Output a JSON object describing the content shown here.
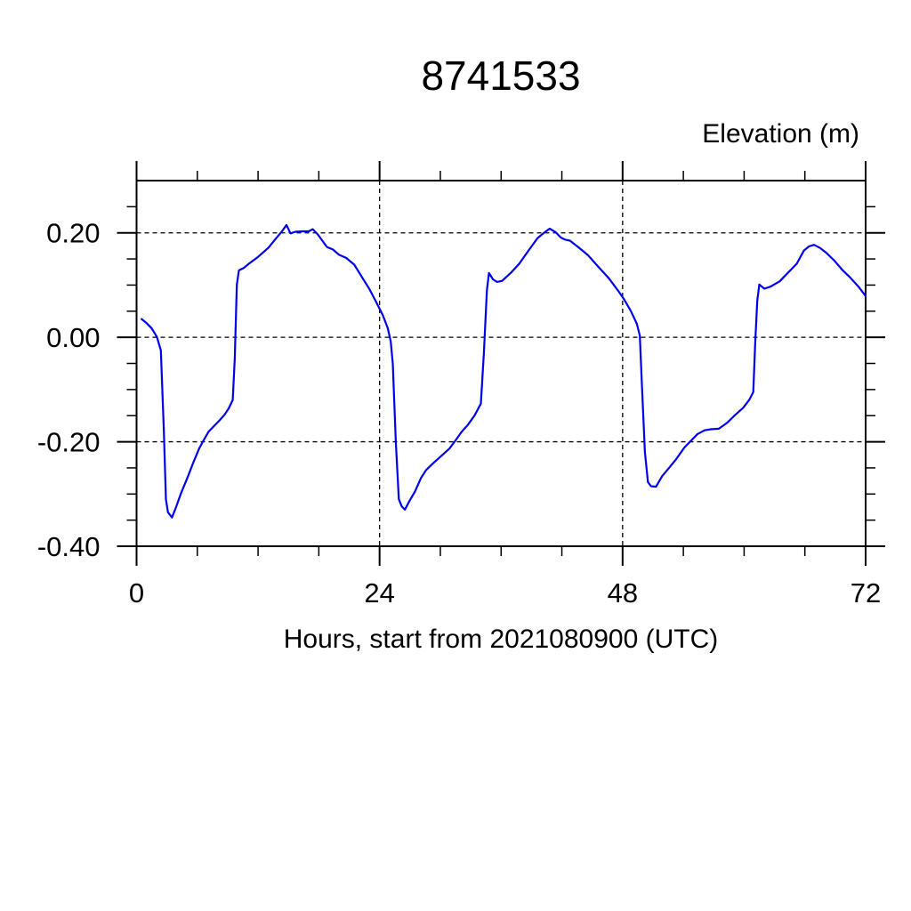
{
  "title": "8741533",
  "y_axis_title": "Elevation (m)",
  "x_axis_label": "Hours, start from 2021080900 (UTC)",
  "colors": {
    "line": "#0000ee",
    "axis": "#000000",
    "grid": "#000000",
    "background": "#ffffff"
  },
  "chart_data": {
    "type": "line",
    "title": "8741533",
    "xlabel": "Hours, start from 2021080900 (UTC)",
    "ylabel": "Elevation (m)",
    "xlim": [
      0,
      72
    ],
    "ylim": [
      -0.4,
      0.3
    ],
    "x_major_ticks": [
      0,
      24,
      48,
      72
    ],
    "x_tick_labels": [
      "0",
      "24",
      "48",
      "72"
    ],
    "x_minor_step": 6,
    "y_major_ticks": [
      0.2,
      0.0,
      -0.2,
      -0.4
    ],
    "y_tick_labels": [
      "0.20",
      "0.00",
      "-0.20",
      "-0.40"
    ],
    "y_minor_step": 0.05,
    "x_gridlines": [
      24,
      48
    ],
    "y_gridlines": [
      0.2,
      0.0,
      -0.2,
      -0.4
    ],
    "grid_style": "dashed",
    "legend": null,
    "series": [
      {
        "name": "elevation",
        "points": [
          [
            0.5,
            0.035
          ],
          [
            1.0,
            0.027
          ],
          [
            1.5,
            0.017
          ],
          [
            2.0,
            0.001
          ],
          [
            2.4,
            -0.025
          ],
          [
            2.7,
            -0.18
          ],
          [
            2.9,
            -0.31
          ],
          [
            3.1,
            -0.335
          ],
          [
            3.5,
            -0.345
          ],
          [
            3.9,
            -0.325
          ],
          [
            4.4,
            -0.298
          ],
          [
            5.0,
            -0.27
          ],
          [
            5.6,
            -0.24
          ],
          [
            6.2,
            -0.212
          ],
          [
            6.6,
            -0.198
          ],
          [
            7.1,
            -0.181
          ],
          [
            7.6,
            -0.171
          ],
          [
            8.2,
            -0.159
          ],
          [
            8.7,
            -0.148
          ],
          [
            9.1,
            -0.136
          ],
          [
            9.5,
            -0.12
          ],
          [
            9.7,
            -0.04
          ],
          [
            9.9,
            0.1
          ],
          [
            10.1,
            0.128
          ],
          [
            10.6,
            0.133
          ],
          [
            11.1,
            0.141
          ],
          [
            12.0,
            0.154
          ],
          [
            13.0,
            0.171
          ],
          [
            13.8,
            0.19
          ],
          [
            14.4,
            0.204
          ],
          [
            14.8,
            0.215
          ],
          [
            15.2,
            0.199
          ],
          [
            15.7,
            0.202
          ],
          [
            16.4,
            0.203
          ],
          [
            17.0,
            0.203
          ],
          [
            17.4,
            0.207
          ],
          [
            17.9,
            0.197
          ],
          [
            18.3,
            0.186
          ],
          [
            18.8,
            0.173
          ],
          [
            19.4,
            0.168
          ],
          [
            20.0,
            0.158
          ],
          [
            20.7,
            0.152
          ],
          [
            21.5,
            0.139
          ],
          [
            22.3,
            0.114
          ],
          [
            23.0,
            0.092
          ],
          [
            23.7,
            0.066
          ],
          [
            24.3,
            0.043
          ],
          [
            24.8,
            0.018
          ],
          [
            25.1,
            -0.008
          ],
          [
            25.3,
            -0.05
          ],
          [
            25.6,
            -0.2
          ],
          [
            25.9,
            -0.31
          ],
          [
            26.2,
            -0.324
          ],
          [
            26.5,
            -0.33
          ],
          [
            26.9,
            -0.315
          ],
          [
            27.5,
            -0.295
          ],
          [
            28.1,
            -0.269
          ],
          [
            28.6,
            -0.254
          ],
          [
            29.3,
            -0.241
          ],
          [
            30.1,
            -0.227
          ],
          [
            30.9,
            -0.213
          ],
          [
            31.4,
            -0.2
          ],
          [
            32.1,
            -0.181
          ],
          [
            32.7,
            -0.168
          ],
          [
            33.4,
            -0.149
          ],
          [
            34.0,
            -0.127
          ],
          [
            34.3,
            -0.03
          ],
          [
            34.6,
            0.09
          ],
          [
            34.8,
            0.123
          ],
          [
            35.2,
            0.111
          ],
          [
            35.6,
            0.106
          ],
          [
            36.1,
            0.108
          ],
          [
            37.0,
            0.124
          ],
          [
            37.8,
            0.141
          ],
          [
            38.7,
            0.166
          ],
          [
            39.6,
            0.19
          ],
          [
            40.3,
            0.201
          ],
          [
            40.8,
            0.208
          ],
          [
            41.4,
            0.201
          ],
          [
            41.9,
            0.191
          ],
          [
            42.3,
            0.187
          ],
          [
            42.8,
            0.185
          ],
          [
            43.6,
            0.173
          ],
          [
            44.6,
            0.157
          ],
          [
            45.6,
            0.135
          ],
          [
            46.6,
            0.114
          ],
          [
            47.6,
            0.088
          ],
          [
            48.1,
            0.074
          ],
          [
            48.8,
            0.051
          ],
          [
            49.4,
            0.026
          ],
          [
            49.7,
            0.003
          ],
          [
            49.9,
            -0.09
          ],
          [
            50.2,
            -0.22
          ],
          [
            50.5,
            -0.277
          ],
          [
            50.8,
            -0.285
          ],
          [
            51.3,
            -0.286
          ],
          [
            51.9,
            -0.266
          ],
          [
            52.5,
            -0.252
          ],
          [
            53.3,
            -0.233
          ],
          [
            54.1,
            -0.211
          ],
          [
            54.7,
            -0.199
          ],
          [
            55.4,
            -0.185
          ],
          [
            56.1,
            -0.178
          ],
          [
            56.7,
            -0.176
          ],
          [
            57.5,
            -0.175
          ],
          [
            58.3,
            -0.164
          ],
          [
            59.1,
            -0.149
          ],
          [
            59.9,
            -0.135
          ],
          [
            60.5,
            -0.12
          ],
          [
            60.9,
            -0.105
          ],
          [
            61.1,
            -0.01
          ],
          [
            61.3,
            0.07
          ],
          [
            61.5,
            0.101
          ],
          [
            62.0,
            0.093
          ],
          [
            62.6,
            0.097
          ],
          [
            63.5,
            0.107
          ],
          [
            64.3,
            0.123
          ],
          [
            65.2,
            0.141
          ],
          [
            65.9,
            0.166
          ],
          [
            66.4,
            0.174
          ],
          [
            66.9,
            0.177
          ],
          [
            67.5,
            0.171
          ],
          [
            68.1,
            0.162
          ],
          [
            68.9,
            0.147
          ],
          [
            69.7,
            0.129
          ],
          [
            70.5,
            0.114
          ],
          [
            71.3,
            0.097
          ],
          [
            72.0,
            0.079
          ]
        ]
      }
    ]
  }
}
